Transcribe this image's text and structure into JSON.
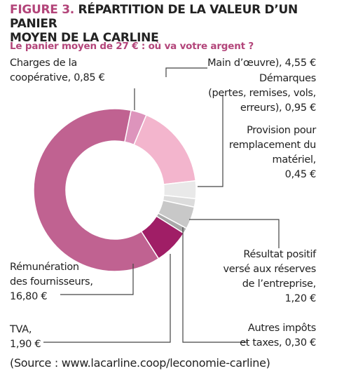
{
  "figure": {
    "number": "FIGURE 3.",
    "title_line1": "RÉPARTITION DE LA VALEUR D’UN PANIER",
    "title_line2": "MOYEN DE LA CARLINE",
    "subtitle": "Le panier moyen de 27 € : où va votre argent ?"
  },
  "labels": {
    "charges": [
      "Charges de la",
      "coopérative, 0,85 €"
    ],
    "main_oeuvre": [
      "Main d’œuvre), 4,55 €"
    ],
    "demarques": [
      "Démarques",
      "(pertes, remises, vols,",
      "erreurs), 0,95 €"
    ],
    "provision": [
      "Provision pour",
      "remplacement du",
      "matériel,",
      "0,45 €"
    ],
    "resultat": [
      "Résultat positif",
      "versé aux réserves",
      "de l’entreprise,",
      "1,20 €"
    ],
    "remuneration": [
      "Rémunération",
      "des fournisseurs,",
      "16,80 €"
    ],
    "tva": [
      "TVA,",
      "1,90 €"
    ],
    "autres": [
      "Autres impôts",
      "et taxes, 0,30 €"
    ]
  },
  "source": "(Source : www.lacarline.coop/leconomie-carline)",
  "chart_data": {
    "type": "pie",
    "donut": true,
    "total": 27,
    "unit": "€",
    "slices": [
      {
        "label": "Charges de la coopérative",
        "value": 0.85,
        "color": "#dd94bc"
      },
      {
        "label": "Main d’œuvre",
        "value": 4.55,
        "color": "#f3b5cd"
      },
      {
        "label": "Démarques (pertes, remises, vols, erreurs)",
        "value": 0.95,
        "color": "#e9e9e9"
      },
      {
        "label": "Provision pour remplacement du matériel",
        "value": 0.45,
        "color": "#dcdcdc"
      },
      {
        "label": "Résultat positif versé aux réserves de l’entreprise",
        "value": 1.2,
        "color": "#c8c8c8"
      },
      {
        "label": "Autres impôts et taxes",
        "value": 0.3,
        "color": "#a9a9a9"
      },
      {
        "label": "TVA",
        "value": 1.9,
        "color": "#a01e66"
      },
      {
        "label": "Rémunération des fournisseurs",
        "value": 16.8,
        "color": "#c06291"
      }
    ]
  }
}
